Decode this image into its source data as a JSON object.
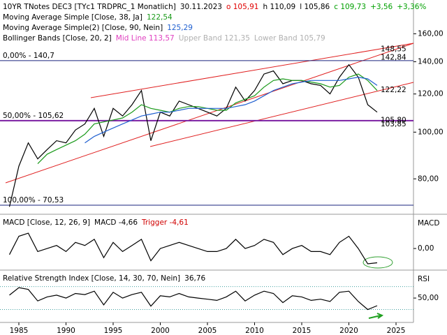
{
  "chart_data": [
    {
      "type": "line",
      "title": "10YR TNotes DEC3 [TYc1 TRDPRC_1 Monatlich]",
      "date": "30.11.2023",
      "quote": [
        {
          "text": "o 105,91",
          "color": "#e00000"
        },
        {
          "text": "h 110,09",
          "color": "#000000"
        },
        {
          "text": "l 105,86",
          "color": "#000000"
        },
        {
          "text": "c 109,73",
          "color": "#00a000"
        },
        {
          "text": "+3,56",
          "color": "#00a000"
        },
        {
          "text": "+3,36%",
          "color": "#00a000"
        }
      ],
      "x": [
        1984,
        1985,
        1986,
        1987,
        1988,
        1989,
        1990,
        1991,
        1992,
        1993,
        1994,
        1995,
        1996,
        1997,
        1998,
        1999,
        2000,
        2001,
        2002,
        2003,
        2004,
        2005,
        2006,
        2007,
        2008,
        2009,
        2010,
        2011,
        2012,
        2013,
        2014,
        2015,
        2016,
        2017,
        2018,
        2019,
        2020,
        2021,
        2022,
        2023
      ],
      "series": [
        {
          "color": "#000000",
          "values": [
            70,
            85,
            95,
            88,
            92,
            96,
            95,
            101,
            104,
            112,
            98,
            112,
            108,
            114,
            122,
            96,
            110,
            108,
            116,
            114,
            112,
            110,
            108,
            112,
            124,
            116,
            122,
            132,
            134,
            126,
            128,
            128,
            126,
            125,
            120,
            130,
            138,
            130,
            114,
            110
          ]
        },
        {
          "name": "Moving Average Simple [Close, 38, Ja]",
          "readout": "122,54",
          "color": "#1a9a1a",
          "values": [
            null,
            null,
            null,
            86,
            90,
            92,
            94,
            96,
            99,
            104,
            105,
            106,
            107,
            110,
            114,
            112,
            111,
            110,
            112,
            113,
            113,
            112,
            111,
            111,
            115,
            117,
            119,
            124,
            128,
            129,
            128,
            128,
            127,
            126,
            124,
            125,
            130,
            132,
            128,
            122
          ]
        },
        {
          "name": "Moving Average Simple(2) [Close, 90, Nein]",
          "readout": "125,29",
          "color": "#2060d0",
          "values": [
            null,
            null,
            null,
            null,
            null,
            null,
            null,
            null,
            95,
            98,
            100,
            102,
            104,
            106,
            108,
            109,
            110,
            110,
            111,
            112,
            112,
            112,
            112,
            112,
            113,
            114,
            116,
            119,
            122,
            124,
            126,
            127,
            128,
            128,
            128,
            128,
            129,
            130,
            129,
            125
          ]
        }
      ],
      "bands": {
        "label": "Bollinger Bands [Close, 20, 2]",
        "mid": "Mid Line 113,57",
        "upper": "Upper Band 121,35",
        "lower": "Lower Band 105,79",
        "mid_color": "#e040c0",
        "band_color": "#b0b0b0"
      },
      "levels": [
        {
          "value": 140.7,
          "label": "0,00% - 140,7",
          "color": "#1a237e"
        },
        {
          "value": 105.62,
          "label": "50,00% - 105,62",
          "color": "#7b1fa2"
        },
        {
          "value": 70.53,
          "label": "100,00% - 70,53",
          "color": "#1a237e"
        }
      ],
      "price_labels": [
        {
          "value": 148.55,
          "label": "148,55"
        },
        {
          "value": 142.84,
          "label": "142,84"
        },
        {
          "value": 122.22,
          "label": "122,22"
        },
        {
          "value": 105.8,
          "label": "105,80"
        },
        {
          "value": 103.85,
          "label": "103,85"
        }
      ],
      "price_label_color": "#d00000",
      "log_scale": true,
      "xlim": [
        1983,
        2026.85
      ],
      "ylim": [
        68,
        188
      ],
      "yticks": [
        {
          "value": 80,
          "label": "80,00"
        },
        {
          "value": 100,
          "label": "100,00"
        },
        {
          "value": 120,
          "label": "120,00"
        },
        {
          "value": 140,
          "label": "140,00"
        },
        {
          "value": 160,
          "label": "160,00"
        }
      ]
    },
    {
      "type": "line",
      "title": "MACD [Close, 12, 26, 9]",
      "readouts": [
        {
          "text": "MACD -4,66",
          "color": "#000000"
        },
        {
          "text": "Trigger -4,61",
          "color": "#d00000"
        }
      ],
      "axis_label": "MACD",
      "x": [
        1984,
        1985,
        1986,
        1987,
        1988,
        1989,
        1990,
        1991,
        1992,
        1993,
        1994,
        1995,
        1996,
        1997,
        1998,
        1999,
        2000,
        2001,
        2002,
        2003,
        2004,
        2005,
        2006,
        2007,
        2008,
        2009,
        2010,
        2011,
        2012,
        2013,
        2014,
        2015,
        2016,
        2017,
        2018,
        2019,
        2020,
        2021,
        2022,
        2023
      ],
      "series": [
        {
          "color": "#000000",
          "values": [
            -2,
            4,
            5,
            -1,
            0,
            1,
            -1,
            2,
            1,
            3,
            -3,
            2,
            -1,
            1,
            3,
            -4,
            0,
            1,
            2,
            1,
            0,
            -1,
            -1,
            0,
            3,
            0,
            1,
            3,
            2,
            -2,
            0,
            1,
            -1,
            -1,
            -2,
            2,
            4,
            0,
            -5,
            -4.66
          ]
        }
      ],
      "xlim": [
        1983,
        2026.85
      ],
      "ylim": [
        -6.6,
        10.5
      ],
      "yticks": [
        {
          "value": 0,
          "label": "0,00"
        }
      ]
    },
    {
      "type": "line",
      "title": "Relative Strength Index [Close, 14, 30, 70, Nein]",
      "readouts": [
        {
          "text": "36,76",
          "color": "#000000"
        }
      ],
      "axis_label": "RSI",
      "x": [
        1984,
        1985,
        1986,
        1987,
        1988,
        1989,
        1990,
        1991,
        1992,
        1993,
        1994,
        1995,
        1996,
        1997,
        1998,
        1999,
        2000,
        2001,
        2002,
        2003,
        2004,
        2005,
        2006,
        2007,
        2008,
        2009,
        2010,
        2011,
        2012,
        2013,
        2014,
        2015,
        2016,
        2017,
        2018,
        2019,
        2020,
        2021,
        2022,
        2023
      ],
      "series": [
        {
          "color": "#000000",
          "values": [
            55,
            68,
            65,
            45,
            52,
            55,
            50,
            58,
            56,
            62,
            38,
            60,
            50,
            56,
            60,
            36,
            54,
            52,
            58,
            52,
            50,
            48,
            46,
            52,
            62,
            45,
            55,
            62,
            58,
            42,
            54,
            52,
            46,
            48,
            44,
            60,
            62,
            44,
            30,
            36.76
          ]
        }
      ],
      "ref_lines": [
        30,
        70
      ],
      "ref_color": "#40a0a0",
      "xlim": [
        1983,
        2026.85
      ],
      "ylim": [
        10,
        95
      ],
      "yticks": [
        {
          "value": 50,
          "label": "50,00"
        }
      ],
      "xticks": [
        1985,
        1990,
        1995,
        2000,
        2005,
        2010,
        2015,
        2020,
        2025
      ]
    }
  ]
}
